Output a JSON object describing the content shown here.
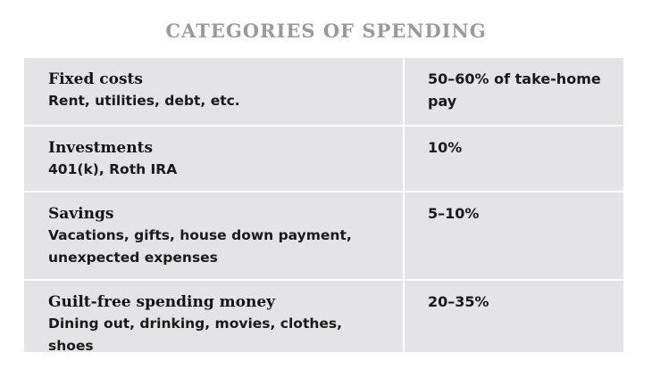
{
  "title": "CATEGORIES OF SPENDING",
  "rows": [
    {
      "heading": "Fixed costs",
      "description_lines": [
        "Rent, utilities, debt, etc."
      ],
      "percentage_lines": [
        "50–60% of take-home",
        "pay"
      ]
    },
    {
      "heading": "Investments",
      "description_lines": [
        "401(k), Roth IRA"
      ],
      "percentage_lines": [
        "10%"
      ]
    },
    {
      "heading": "Savings",
      "description_lines": [
        "Vacations, gifts, house down payment,",
        "unexpected expenses"
      ],
      "percentage_lines": [
        "5–10%"
      ]
    },
    {
      "heading": "Guilt-free spending money",
      "description_lines": [
        "Dining out, drinking, movies, clothes, shoes"
      ],
      "percentage_lines": [
        "20–35%"
      ]
    }
  ],
  "colors": {
    "title": "#9a9a9a",
    "table_background": "#e4e4e6",
    "divider": "#ffffff",
    "text": "#1a1a1a"
  }
}
